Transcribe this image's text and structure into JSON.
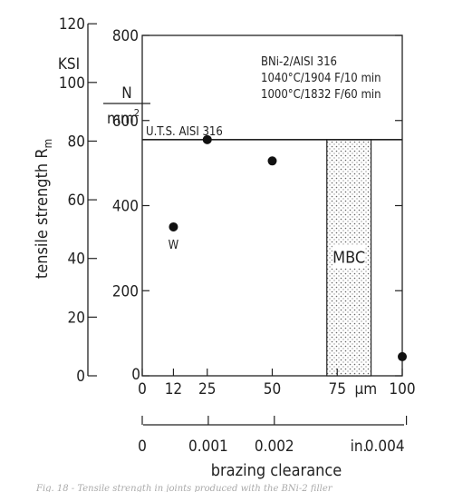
{
  "chart_data": {
    "type": "scatter",
    "title": "",
    "ylabel": "tensile strength R",
    "ylabel_sub": "m",
    "y_unit_left": "KSI",
    "y_unit_right_num": "N",
    "y_unit_right_den": "mm",
    "y_unit_right_exp": "2",
    "xlabel": "brazing clearance",
    "x_unit_um": "μm",
    "x_unit_in": "in.",
    "ylim_mpa": [
      0,
      800
    ],
    "xlim_um": [
      0,
      100
    ],
    "ksi_ticks": [
      "0",
      "20",
      "40",
      "60",
      "80",
      "100",
      "120"
    ],
    "mpa_ticks": [
      "0",
      "200",
      "400",
      "600",
      "800"
    ],
    "um_ticks": [
      "0",
      "12",
      "25",
      "50",
      "75",
      "100"
    ],
    "um_tick_values": [
      0,
      12,
      25,
      50,
      75,
      100
    ],
    "in_ticks": [
      "0",
      "0.001",
      "0.002",
      "0.004"
    ],
    "in_tick_values": [
      0,
      0.001,
      0.002,
      0.004
    ],
    "points": [
      {
        "x": 12,
        "y": 350,
        "label": "W"
      },
      {
        "x": 25,
        "y": 555,
        "label": ""
      },
      {
        "x": 50,
        "y": 505,
        "label": ""
      },
      {
        "x": 100,
        "y": 45,
        "label": ""
      }
    ],
    "uts_line": {
      "y": 555,
      "label": "U.T.S. AISI 316"
    },
    "mbc_band": {
      "x_start": 71,
      "x_end": 88,
      "label": "MBC"
    },
    "annotation_lines": [
      "BNi-2/AISI 316",
      "1040°C/1904 F/10 min",
      "1000°C/1832 F/60 min"
    ]
  },
  "caption": "Fig. 18 - Tensile strength in joints produced with the BNi-2 filler"
}
